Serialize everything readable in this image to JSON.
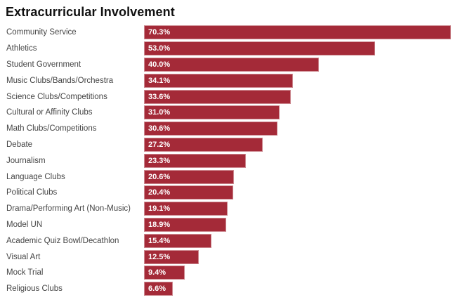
{
  "chart_data": {
    "type": "bar",
    "orientation": "horizontal",
    "title": "Extracurricular Involvement",
    "xlabel": "",
    "ylabel": "",
    "xlim": [
      0,
      70.3
    ],
    "grid": false,
    "legend": "none",
    "data_labels": "inside-start",
    "bar_color": "#A42A38",
    "bar_rim_color": "rgba(255,255,255,0.45)",
    "label_color": "#454545",
    "value_label_color": "#ffffff",
    "title_color": "#111111",
    "categories": [
      "Community Service",
      "Athletics",
      "Student Government",
      "Music Clubs/Bands/Orchestra",
      "Science Clubs/Competitions",
      "Cultural or Affinity Clubs",
      "Math Clubs/Competitions",
      "Debate",
      "Journalism",
      "Language Clubs",
      "Political Clubs",
      "Drama/Performing Art (Non-Music)",
      "Model UN",
      "Academic Quiz Bowl/Decathlon",
      "Visual Art",
      "Mock Trial",
      "Religious Clubs"
    ],
    "values": [
      70.3,
      53.0,
      40.0,
      34.1,
      33.6,
      31.0,
      30.6,
      27.2,
      23.3,
      20.6,
      20.4,
      19.1,
      18.9,
      15.4,
      12.5,
      9.4,
      6.6
    ],
    "value_labels": [
      "70.3%",
      "53.0%",
      "40.0%",
      "34.1%",
      "33.6%",
      "31.0%",
      "30.6%",
      "27.2%",
      "23.3%",
      "20.6%",
      "20.4%",
      "19.1%",
      "18.9%",
      "15.4%",
      "12.5%",
      "9.4%",
      "6.6%"
    ]
  }
}
